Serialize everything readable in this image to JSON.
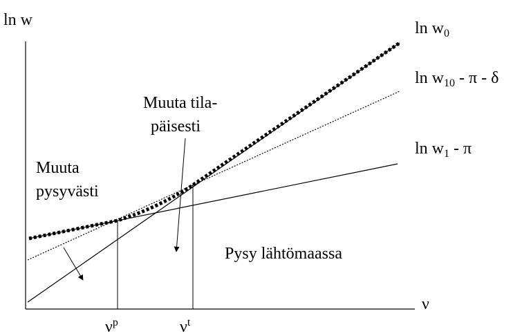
{
  "y_axis_label": "ln w",
  "x_axis_label": "ν",
  "curves": [
    {
      "base": "ln w",
      "sub": "0",
      "rest": ""
    },
    {
      "base": "ln w",
      "sub": "10",
      "rest": " - π - δ"
    },
    {
      "base": "ln w",
      "sub": "1",
      "rest": " - π"
    }
  ],
  "regions": [
    {
      "lines": [
        "Muuta tila-",
        "päisesti"
      ]
    },
    {
      "lines": [
        "Muuta",
        "pysyvästi"
      ]
    },
    {
      "lines": [
        "Pysy lähtömaassa"
      ]
    }
  ],
  "thresholds": [
    {
      "base": "ν",
      "sup": "p"
    },
    {
      "base": "ν",
      "sup": "t"
    }
  ]
}
